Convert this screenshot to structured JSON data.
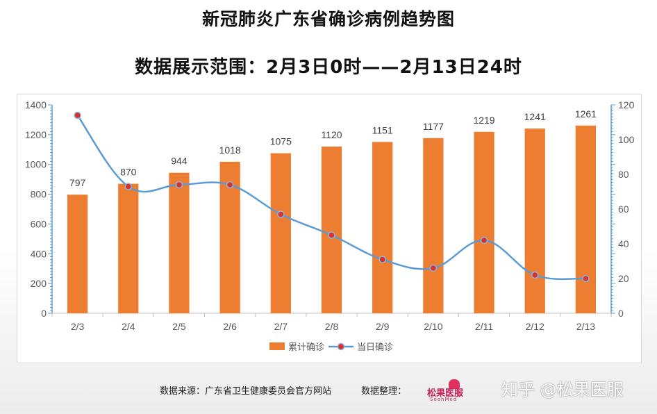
{
  "header": {
    "title": "新冠肺炎广东省确诊病例趋势图",
    "subtitle": "数据展示范围：2月3日0时——2月13日24时"
  },
  "chart_data": {
    "type": "bar",
    "categories": [
      "2/3",
      "2/4",
      "2/5",
      "2/6",
      "2/7",
      "2/8",
      "2/9",
      "2/10",
      "2/11",
      "2/12",
      "2/13"
    ],
    "series": [
      {
        "name": "累计确诊",
        "type": "bar",
        "axis": "left",
        "color": "#ed7d31",
        "values": [
          797,
          870,
          944,
          1018,
          1075,
          1120,
          1151,
          1177,
          1219,
          1241,
          1261
        ]
      },
      {
        "name": "当日确诊",
        "type": "line",
        "axis": "right",
        "color": "#5b9bd5",
        "marker_color": "#d9302a",
        "values": [
          114,
          73,
          74,
          74,
          57,
          45,
          31,
          26,
          42,
          22,
          20
        ]
      }
    ],
    "ylim": [
      0,
      1400
    ],
    "yticks": [
      0,
      200,
      400,
      600,
      800,
      1000,
      1200,
      1400
    ],
    "y2lim": [
      0,
      120
    ],
    "y2ticks": [
      0,
      20,
      40,
      60,
      80,
      100,
      120
    ],
    "legend": "bottom-center",
    "grid": false
  },
  "footer": {
    "source": "数据来源：广东省卫生健康委员会官方网站",
    "organizer": "数据整理："
  },
  "logo": {
    "text": "松果医服",
    "sub": "SoohMed"
  },
  "watermark": "知乎 @松果医服"
}
